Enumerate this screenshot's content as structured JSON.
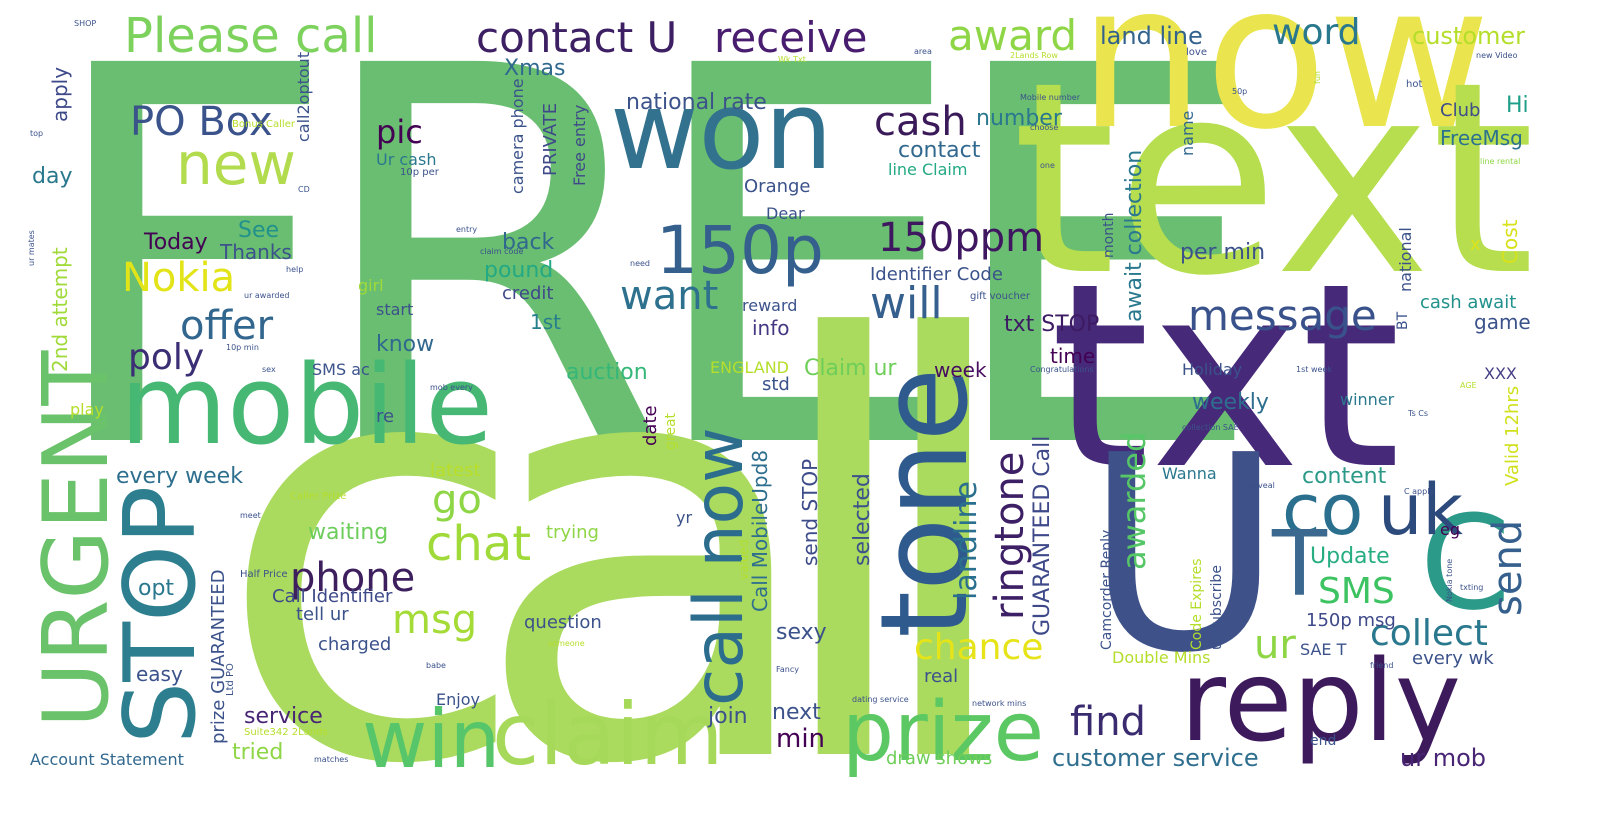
{
  "words": [
    {
      "text": "FREE",
      "color": "#6abe71"
    },
    {
      "text": "call",
      "color": "#aada5e"
    },
    {
      "text": "now",
      "color": "#eae54e"
    },
    {
      "text": "text",
      "color": "#b6de4e"
    },
    {
      "text": "txt",
      "color": "#47297a"
    },
    {
      "text": "U",
      "color": "#3e5188"
    },
    {
      "text": "won",
      "color": "#33728e"
    },
    {
      "text": "mobile",
      "color": "#47b874"
    },
    {
      "text": "URGENT",
      "color": "#6ac26a"
    },
    {
      "text": "STOP",
      "color": "#2d7e8e"
    },
    {
      "text": "reply",
      "color": "#3d1a5c"
    },
    {
      "text": "tone",
      "color": "#2f5a8d"
    },
    {
      "text": "C",
      "color": "#2c9a88"
    },
    {
      "text": "win",
      "color": "#57c66a"
    },
    {
      "text": "claim",
      "color": "#a6d95a"
    },
    {
      "text": "prize",
      "color": "#5cc863"
    },
    {
      "text": "call now",
      "color": "#2c6d8e"
    },
    {
      "text": "150p",
      "color": "#355f8d"
    },
    {
      "text": "uk",
      "color": "#2d4a7d"
    },
    {
      "text": "co",
      "color": "#2a6f8e"
    },
    {
      "text": "T",
      "color": "#3a688e"
    },
    {
      "text": "new",
      "color": "#b2db4e"
    },
    {
      "text": "Please call",
      "color": "#7cd25d"
    },
    {
      "text": "contact U",
      "color": "#3d1f63"
    },
    {
      "text": "receive",
      "color": "#481c6e"
    },
    {
      "text": "award",
      "color": "#8ed645"
    },
    {
      "text": "word",
      "color": "#2a788e"
    },
    {
      "text": "customer",
      "color": "#b5de2b"
    },
    {
      "text": "land line",
      "color": "#33638d"
    },
    {
      "text": "PO Box",
      "color": "#3a538b"
    },
    {
      "text": "cash",
      "color": "#3b1a5a"
    },
    {
      "text": "150ppm",
      "color": "#3f1760"
    },
    {
      "text": "message",
      "color": "#3a528b"
    },
    {
      "text": "will",
      "color": "#355f8d"
    },
    {
      "text": "want",
      "color": "#2d718e"
    },
    {
      "text": "offer",
      "color": "#31668e"
    },
    {
      "text": "Nokia",
      "color": "#e2e418"
    },
    {
      "text": "poly",
      "color": "#3b2e75"
    },
    {
      "text": "chat",
      "color": "#a0da39"
    },
    {
      "text": "go",
      "color": "#8ed645"
    },
    {
      "text": "phone",
      "color": "#3e1f5e"
    },
    {
      "text": "msg",
      "color": "#a4db36"
    },
    {
      "text": "ringtone",
      "color": "#3d1f66"
    },
    {
      "text": "landline",
      "color": "#2a6f8e"
    },
    {
      "text": "chance",
      "color": "#e6e419"
    },
    {
      "text": "ur",
      "color": "#8ed645"
    },
    {
      "text": "collect",
      "color": "#2a788e"
    },
    {
      "text": "send",
      "color": "#355f8d"
    },
    {
      "text": "SMS",
      "color": "#3ec363"
    },
    {
      "text": "find",
      "color": "#3a2a6f"
    },
    {
      "text": "awarded",
      "color": "#56c667"
    },
    {
      "text": "pic",
      "color": "#440154"
    },
    {
      "text": "Xmas",
      "color": "#30698e"
    },
    {
      "text": "national rate",
      "color": "#3b528b"
    },
    {
      "text": "number",
      "color": "#2a788e"
    },
    {
      "text": "contact",
      "color": "#31688e"
    },
    {
      "text": "Club",
      "color": "#3e4c8a"
    },
    {
      "text": "Hi",
      "color": "#1f9e89"
    },
    {
      "text": "FreeMsg",
      "color": "#2c728e"
    },
    {
      "text": "Cost",
      "color": "#d8e219"
    },
    {
      "text": "game",
      "color": "#3b528b"
    },
    {
      "text": "time",
      "color": "#440154"
    },
    {
      "text": "week",
      "color": "#470d60"
    },
    {
      "text": "weekly",
      "color": "#2e6e8e"
    },
    {
      "text": "txt STOP",
      "color": "#3d1b63"
    },
    {
      "text": "auction",
      "color": "#35b779"
    },
    {
      "text": "every week",
      "color": "#2e6f8e"
    },
    {
      "text": "waiting",
      "color": "#6ccd5a"
    },
    {
      "text": "content",
      "color": "#2c9a88"
    },
    {
      "text": "Update",
      "color": "#26ad81"
    },
    {
      "text": "per min",
      "color": "#3b528b"
    },
    {
      "text": "Valid 12hrs",
      "color": "#d0e11c"
    },
    {
      "text": "XXX",
      "color": "#433e85"
    },
    {
      "text": "back",
      "color": "#31688e"
    },
    {
      "text": "pound",
      "color": "#23a983"
    },
    {
      "text": "credit",
      "color": "#3f4889"
    },
    {
      "text": "1st",
      "color": "#277f8e"
    },
    {
      "text": "Today",
      "color": "#440154"
    },
    {
      "text": "Thanks",
      "color": "#3b528b"
    },
    {
      "text": "See",
      "color": "#21918c"
    },
    {
      "text": "know",
      "color": "#31688e"
    },
    {
      "text": "info",
      "color": "#453882"
    },
    {
      "text": "reward",
      "color": "#3b528b"
    },
    {
      "text": "day",
      "color": "#2a788e"
    },
    {
      "text": "apply",
      "color": "#3e4989"
    },
    {
      "text": "2nd attempt",
      "color": "#a0da39"
    },
    {
      "text": "Orange",
      "color": "#3b528b"
    },
    {
      "text": "Dear",
      "color": "#3b528b"
    },
    {
      "text": "Identifier Code",
      "color": "#3b528b"
    },
    {
      "text": "line Claim",
      "color": "#23a983"
    },
    {
      "text": "await collection",
      "color": "#2a788e"
    },
    {
      "text": "name",
      "color": "#31688e"
    },
    {
      "text": "month",
      "color": "#3b528b"
    },
    {
      "text": "national",
      "color": "#3b528b"
    },
    {
      "text": "cash await",
      "color": "#21918c"
    },
    {
      "text": "BT",
      "color": "#3b528b"
    },
    {
      "text": "Holiday",
      "color": "#3b528b"
    },
    {
      "text": "winner",
      "color": "#2a788e"
    },
    {
      "text": "x",
      "color": "#dde318"
    },
    {
      "text": "selected",
      "color": "#3b528b"
    },
    {
      "text": "GUARANTEED Call",
      "color": "#3e4989"
    },
    {
      "text": "Claim ur",
      "color": "#6ece58"
    },
    {
      "text": "ENGLAND",
      "color": "#b5de2b"
    },
    {
      "text": "std",
      "color": "#3b528b"
    },
    {
      "text": "Call MobileUpd8",
      "color": "#2e6e8e"
    },
    {
      "text": "send STOP",
      "color": "#3e4c8a"
    },
    {
      "text": "sexy",
      "color": "#3b528b"
    },
    {
      "text": "date",
      "color": "#440154"
    },
    {
      "text": "great",
      "color": "#b5de2b"
    },
    {
      "text": "latest",
      "color": "#b8de29"
    },
    {
      "text": "re",
      "color": "#3b528b"
    },
    {
      "text": "SMS ac",
      "color": "#3b528b"
    },
    {
      "text": "PRIVATE",
      "color": "#3e4989"
    },
    {
      "text": "camera phone",
      "color": "#3b528b"
    },
    {
      "text": "Free entry",
      "color": "#3e4989"
    },
    {
      "text": "Ur cash",
      "color": "#2a788e"
    },
    {
      "text": "call2optout",
      "color": "#3b528b"
    },
    {
      "text": "prize GUARANTEED",
      "color": "#3b528b"
    },
    {
      "text": "service",
      "color": "#482475"
    },
    {
      "text": "tried",
      "color": "#8ed645"
    },
    {
      "text": "Account Statement",
      "color": "#31688e"
    },
    {
      "text": "Call Identifier",
      "color": "#3e4989"
    },
    {
      "text": "tell ur",
      "color": "#3b528b"
    },
    {
      "text": "charged",
      "color": "#3b528b"
    },
    {
      "text": "opt",
      "color": "#2a788e"
    },
    {
      "text": "easy",
      "color": "#3b528b"
    },
    {
      "text": "Enjoy",
      "color": "#3b528b"
    },
    {
      "text": "question",
      "color": "#3b528b"
    },
    {
      "text": "trying",
      "color": "#8ed645"
    },
    {
      "text": "girl",
      "color": "#a0da39"
    },
    {
      "text": "start",
      "color": "#3b528b"
    },
    {
      "text": "play",
      "color": "#b5de2b"
    },
    {
      "text": "real",
      "color": "#3b528b"
    },
    {
      "text": "join",
      "color": "#3b528b"
    },
    {
      "text": "next",
      "color": "#3b528b"
    },
    {
      "text": "min",
      "color": "#440154"
    },
    {
      "text": "draw shows",
      "color": "#6ece58"
    },
    {
      "text": "customer service",
      "color": "#2e6e8e"
    },
    {
      "text": "ur mob",
      "color": "#482475"
    },
    {
      "text": "end",
      "color": "#3b528b"
    },
    {
      "text": "every wk",
      "color": "#3b528b"
    },
    {
      "text": "150p msg",
      "color": "#3e4989"
    },
    {
      "text": "SAE T",
      "color": "#3b528b"
    },
    {
      "text": "Double Mins",
      "color": "#b5de2b"
    },
    {
      "text": "Code Expires",
      "color": "#b5de2b"
    },
    {
      "text": "unsubscribe",
      "color": "#3b528b"
    },
    {
      "text": "Camcorder Reply",
      "color": "#3b528b"
    },
    {
      "text": "Wanna",
      "color": "#2a788e"
    },
    {
      "text": "yr",
      "color": "#3b528b"
    },
    {
      "text": "eg",
      "color": "#440154"
    },
    {
      "text": "valued",
      "color": "#b5de2b"
    },
    {
      "text": "SHOP",
      "color": "#3b528b"
    },
    {
      "text": "top",
      "color": "#3b528b"
    },
    {
      "text": "Bonus Caller",
      "color": "#b5de2b"
    },
    {
      "text": "hot",
      "color": "#3b528b"
    },
    {
      "text": "love",
      "color": "#3b528b"
    },
    {
      "text": "new Video",
      "color": "#3b528b"
    },
    {
      "text": "line rental",
      "color": "#8ed645"
    },
    {
      "text": "gift voucher",
      "color": "#3b528b"
    },
    {
      "text": "fun",
      "color": "#b5de2b"
    },
    {
      "text": "one",
      "color": "#3b528b"
    },
    {
      "text": "Congratulations",
      "color": "#3b528b"
    },
    {
      "text": "AGE",
      "color": "#b5de2b"
    },
    {
      "text": "Ts Cs",
      "color": "#3b528b"
    },
    {
      "text": "C apply",
      "color": "#3b528b"
    },
    {
      "text": "reveal",
      "color": "#3b528b"
    },
    {
      "text": "Nokia tone",
      "color": "#3b528b"
    },
    {
      "text": "txting",
      "color": "#3b528b"
    },
    {
      "text": "friend",
      "color": "#3b528b"
    },
    {
      "text": "babe",
      "color": "#3b528b"
    },
    {
      "text": "matches",
      "color": "#3b528b"
    },
    {
      "text": "network mins",
      "color": "#3b528b"
    },
    {
      "text": "dating service",
      "color": "#3b528b"
    },
    {
      "text": "Half Price",
      "color": "#3b528b"
    },
    {
      "text": "Caller Prize",
      "color": "#b5de2b"
    },
    {
      "text": "meet",
      "color": "#3b528b"
    },
    {
      "text": "Ltd PO",
      "color": "#3b528b"
    },
    {
      "text": "Suite342 2Lands",
      "color": "#b5de2b"
    },
    {
      "text": "Fancy",
      "color": "#3b528b"
    },
    {
      "text": "someone",
      "color": "#b5de2b"
    },
    {
      "text": "entry",
      "color": "#3b528b"
    },
    {
      "text": "claim code",
      "color": "#3b528b"
    },
    {
      "text": "need",
      "color": "#3b528b"
    },
    {
      "text": "mob every",
      "color": "#3b528b"
    },
    {
      "text": "10p per",
      "color": "#3b528b"
    },
    {
      "text": "CD",
      "color": "#3b528b"
    },
    {
      "text": "help",
      "color": "#3b528b"
    },
    {
      "text": "ur mates",
      "color": "#3b528b"
    },
    {
      "text": "ur awarded",
      "color": "#3b528b"
    },
    {
      "text": "10p min",
      "color": "#3b528b"
    },
    {
      "text": "sex",
      "color": "#3b528b"
    },
    {
      "text": "choose",
      "color": "#3b528b"
    },
    {
      "text": "50p",
      "color": "#3b528b"
    },
    {
      "text": "Mobile number",
      "color": "#3b528b"
    },
    {
      "text": "area",
      "color": "#3b528b"
    },
    {
      "text": "2Lands Row",
      "color": "#b5de2b"
    },
    {
      "text": "Wk Txt",
      "color": "#b5de2b"
    },
    {
      "text": "collection SAE",
      "color": "#3b528b"
    },
    {
      "text": "1st week",
      "color": "#3b528b"
    }
  ]
}
